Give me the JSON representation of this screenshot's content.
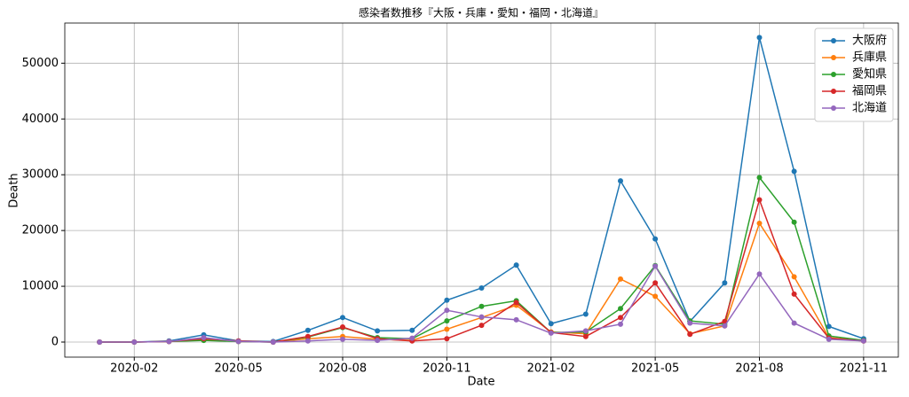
{
  "chart_data": {
    "type": "line",
    "title": "感染者数推移『大阪・兵庫・愛知・福岡・北海道』",
    "xlabel": "Date",
    "ylabel": "Death",
    "x": [
      "2020-01",
      "2020-02",
      "2020-03",
      "2020-04",
      "2020-05",
      "2020-06",
      "2020-07",
      "2020-08",
      "2020-09",
      "2020-10",
      "2020-11",
      "2020-12",
      "2021-01",
      "2021-02",
      "2021-03",
      "2021-04",
      "2021-05",
      "2021-06",
      "2021-07",
      "2021-08",
      "2021-09",
      "2021-10",
      "2021-11"
    ],
    "series": [
      {
        "name": "大阪府",
        "color": "#1f77b4",
        "values": [
          0,
          0,
          200,
          1300,
          200,
          100,
          2100,
          4400,
          2000,
          2100,
          7500,
          9700,
          13800,
          3300,
          5000,
          28900,
          18500,
          3700,
          10600,
          54600,
          30600,
          2800,
          600
        ]
      },
      {
        "name": "兵庫県",
        "color": "#ff7f0e",
        "values": [
          0,
          0,
          100,
          500,
          100,
          0,
          600,
          1000,
          500,
          300,
          2300,
          4400,
          6600,
          1800,
          1500,
          11300,
          8200,
          1500,
          2900,
          21300,
          11700,
          800,
          200
        ]
      },
      {
        "name": "愛知県",
        "color": "#2ca02c",
        "values": [
          0,
          0,
          100,
          300,
          100,
          0,
          900,
          2600,
          800,
          600,
          3800,
          6400,
          7400,
          1700,
          1800,
          6000,
          13700,
          3800,
          3200,
          29500,
          21500,
          1100,
          300
        ]
      },
      {
        "name": "福岡県",
        "color": "#d62728",
        "values": [
          0,
          0,
          100,
          600,
          200,
          0,
          1000,
          2700,
          600,
          200,
          600,
          3000,
          7100,
          1700,
          1000,
          4400,
          10600,
          1400,
          3700,
          25500,
          8600,
          700,
          200
        ]
      },
      {
        "name": "北海道",
        "color": "#9467bd",
        "values": [
          0,
          0,
          100,
          800,
          100,
          0,
          200,
          500,
          300,
          700,
          5700,
          4500,
          4000,
          1600,
          2000,
          3200,
          13600,
          3400,
          2900,
          12200,
          3400,
          500,
          200
        ]
      }
    ],
    "xlim": [
      "2019-12",
      "2021-12"
    ],
    "xticks": [
      "2020-02",
      "2020-05",
      "2020-08",
      "2020-11",
      "2021-02",
      "2021-05",
      "2021-08",
      "2021-11"
    ],
    "ylim": [
      -2700,
      57200
    ],
    "yticks": [
      0,
      10000,
      20000,
      30000,
      40000,
      50000
    ],
    "grid": true,
    "legend": "upper right"
  }
}
